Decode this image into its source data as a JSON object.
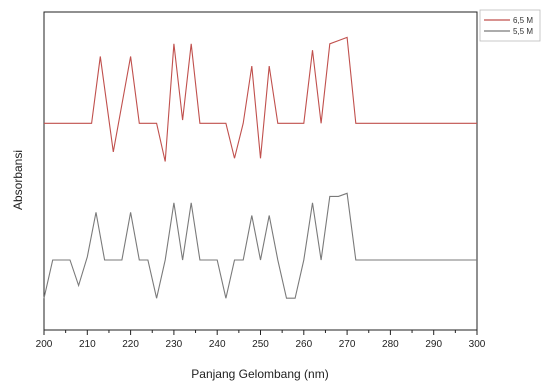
{
  "chart_data": {
    "type": "line",
    "xlabel": "Panjang Gelombang (nm)",
    "ylabel": "Absorbansi",
    "xlim": [
      200,
      300
    ],
    "ylim": [
      0,
      10
    ],
    "x_ticks": [
      "200",
      "210",
      "220",
      "230",
      "240",
      "250",
      "260",
      "270",
      "280",
      "290",
      "300"
    ],
    "y_tick_labels": false,
    "grid": false,
    "legend_position": "top-right outside",
    "series": [
      {
        "name": "6,5 M",
        "color": "#c0504d",
        "x": [
          200,
          211,
          213,
          216,
          220,
          222,
          226,
          228,
          230,
          232,
          234,
          236,
          240,
          242,
          244,
          246,
          248,
          250,
          252,
          254,
          258,
          260,
          262,
          264,
          266,
          268,
          270,
          272,
          300
        ],
        "y": [
          6.5,
          6.5,
          8.6,
          5.6,
          8.6,
          6.5,
          6.5,
          5.3,
          9.0,
          6.6,
          9.0,
          6.5,
          6.5,
          6.5,
          5.4,
          6.5,
          8.3,
          5.4,
          8.3,
          6.5,
          6.5,
          6.5,
          8.8,
          6.5,
          9.0,
          9.1,
          9.2,
          6.5,
          6.5
        ]
      },
      {
        "name": "5,5 M",
        "color": "#7a7a7a",
        "x": [
          200,
          202,
          204,
          206,
          208,
          210,
          212,
          214,
          216,
          218,
          220,
          222,
          224,
          226,
          228,
          230,
          232,
          234,
          236,
          238,
          240,
          242,
          244,
          246,
          248,
          250,
          252,
          254,
          256,
          258,
          260,
          262,
          264,
          266,
          268,
          270,
          272,
          300
        ],
        "y": [
          1.0,
          2.2,
          2.2,
          2.2,
          1.4,
          2.3,
          3.7,
          2.2,
          2.2,
          2.2,
          3.7,
          2.2,
          2.2,
          1.0,
          2.2,
          4.0,
          2.2,
          4.0,
          2.2,
          2.2,
          2.2,
          1.0,
          2.2,
          2.2,
          3.6,
          2.2,
          3.6,
          2.2,
          1.0,
          1.0,
          2.2,
          4.0,
          2.2,
          4.2,
          4.2,
          4.3,
          2.2,
          2.2
        ]
      }
    ]
  }
}
